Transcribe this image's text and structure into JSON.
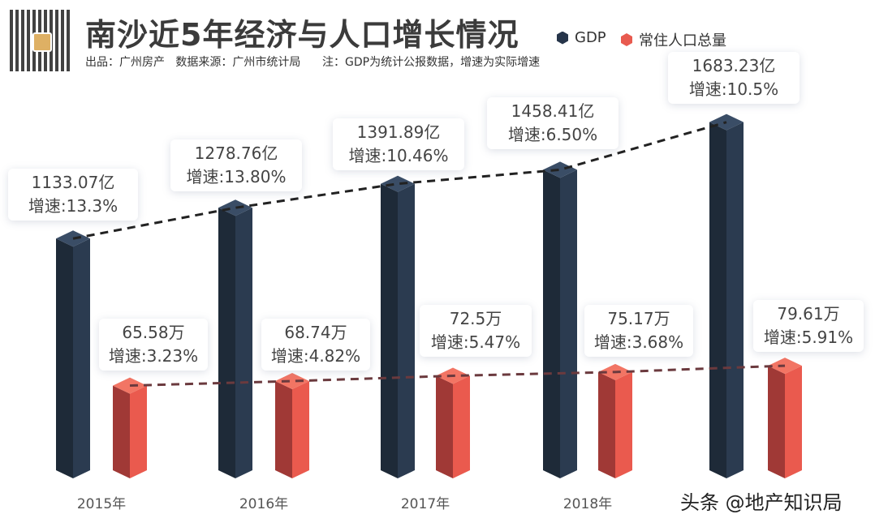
{
  "header": {
    "title": "南沙近5年经济与人口增长情况",
    "subtitle": "出品：广州房产   数据来源：广州市统计局      注：GDP为统计公报数据，增速为实际增速",
    "watermark": "广州房产",
    "credit": "头条 @地产知识局"
  },
  "chart_data": {
    "type": "bar",
    "title": "南沙近5年经济与人口增长情况",
    "categories": [
      "2015年",
      "2016年",
      "2017年",
      "2018年",
      ""
    ],
    "legend_position": "top-right",
    "grid": false,
    "series": [
      {
        "name": "GDP",
        "color": "#26354a",
        "values": [
          1133.07,
          1278.76,
          1391.89,
          1458.41,
          1683.23
        ],
        "value_labels": [
          "1133.07亿",
          "1278.76亿",
          "1391.89亿",
          "1458.41亿",
          "1683.23亿"
        ],
        "growth_labels": [
          "增速:13.3%",
          "增速:13.80%",
          "增速:10.46%",
          "增速:6.50%",
          "增速:10.5%"
        ]
      },
      {
        "name": "常住人口总量",
        "color": "#e85a4f",
        "values": [
          65.58,
          68.74,
          72.5,
          75.17,
          79.61
        ],
        "value_labels": [
          "65.58万",
          "68.74万",
          "72.5万",
          "75.17万",
          "79.61万"
        ],
        "growth_labels": [
          "增速:3.23%",
          "增速:4.82%",
          "增速:5.47%",
          "增速:3.68%",
          "增速:5.91%"
        ]
      }
    ]
  }
}
